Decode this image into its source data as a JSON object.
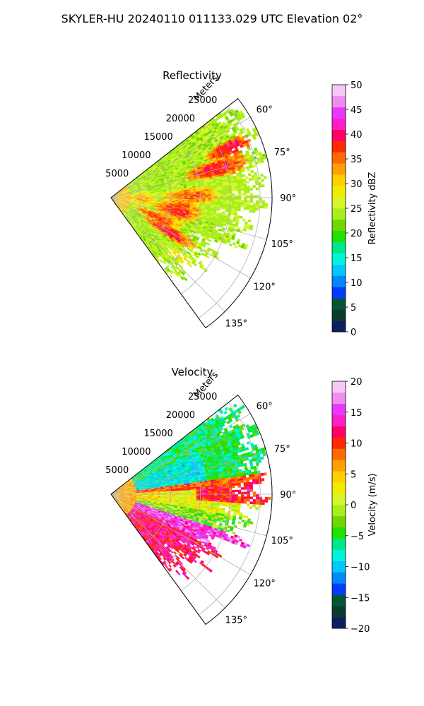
{
  "figure": {
    "suptitle": "SKYLER-HU  20240110  011133.029 UTC Elevation 02°"
  },
  "chart_data": [
    {
      "type": "heatmap",
      "projection": "polar-sector",
      "title": "Reflectivity",
      "radial_axis_label": "Meters",
      "radial_ticks": [
        5000,
        10000,
        15000,
        20000,
        25000
      ],
      "radial_tick_labels": [
        "5000",
        "10000",
        "15000",
        "20000",
        "25000"
      ],
      "rlim": [
        0,
        27000
      ],
      "azimuth_range_deg": [
        52,
        144
      ],
      "azimuth_ticks": [
        60,
        75,
        90,
        105,
        120,
        135
      ],
      "azimuth_tick_labels": [
        "60°",
        "75°",
        "90°",
        "105°",
        "120°",
        "135°"
      ],
      "grid": true,
      "colorbar": {
        "label": "Reflectivity dBZ",
        "range": [
          0,
          50
        ],
        "ticks": [
          0,
          5,
          10,
          15,
          20,
          25,
          30,
          35,
          40,
          45,
          50
        ],
        "tick_labels": [
          "0",
          "5",
          "10",
          "15",
          "20",
          "25",
          "30",
          "35",
          "40",
          "45",
          "50"
        ],
        "colors": [
          "#0b1f5e",
          "#0a3d2e",
          "#06553a",
          "#003dff",
          "#0088ff",
          "#00c8ff",
          "#00f5d8",
          "#00e88a",
          "#22e000",
          "#6ed800",
          "#a8ee1a",
          "#d6f52a",
          "#f0ec00",
          "#ffcf00",
          "#ffa200",
          "#ff6a00",
          "#ff2a00",
          "#ff0066",
          "#ff1fc8",
          "#e838ff",
          "#f08cf0",
          "#f7c8f5"
        ]
      },
      "field": "reflectivity",
      "blobs": [
        {
          "az": 100,
          "r": 11000,
          "raz": 9,
          "rr": 4000,
          "v": 38
        },
        {
          "az": 88,
          "r": 13000,
          "raz": 6,
          "rr": 5000,
          "v": 36
        },
        {
          "az": 74,
          "r": 18000,
          "raz": 5,
          "rr": 5500,
          "v": 39
        },
        {
          "az": 67,
          "r": 21000,
          "raz": 4,
          "rr": 4000,
          "v": 40
        },
        {
          "az": 112,
          "r": 8000,
          "raz": 6,
          "rr": 4500,
          "v": 37
        },
        {
          "az": 120,
          "r": 11000,
          "raz": 5,
          "rr": 5000,
          "v": 39
        },
        {
          "az": 92,
          "r": 5000,
          "raz": 14,
          "rr": 2500,
          "v": 33
        },
        {
          "az": 130,
          "r": 15000,
          "raz": 5,
          "rr": 4000,
          "v": 28
        }
      ]
    },
    {
      "type": "heatmap",
      "projection": "polar-sector",
      "title": "Velocity",
      "radial_axis_label": "Meters",
      "radial_ticks": [
        5000,
        10000,
        15000,
        20000,
        25000
      ],
      "radial_tick_labels": [
        "5000",
        "10000",
        "15000",
        "20000",
        "25000"
      ],
      "rlim": [
        0,
        27000
      ],
      "azimuth_range_deg": [
        52,
        144
      ],
      "azimuth_ticks": [
        60,
        75,
        90,
        105,
        120,
        135
      ],
      "azimuth_tick_labels": [
        "60°",
        "75°",
        "90°",
        "105°",
        "120°",
        "135°"
      ],
      "grid": true,
      "colorbar": {
        "label": "Velocity (m/s)",
        "range": [
          -20,
          20
        ],
        "ticks": [
          -20,
          -15,
          -10,
          -5,
          0,
          5,
          10,
          15,
          20
        ],
        "tick_labels": [
          "−20",
          "−15",
          "−10",
          "−5",
          "0",
          "5",
          "10",
          "15",
          "20"
        ],
        "colors": [
          "#0b1f5e",
          "#0a3d2e",
          "#06553a",
          "#003dff",
          "#0088ff",
          "#00c8ff",
          "#00f5d8",
          "#00e88a",
          "#22e000",
          "#6ed800",
          "#a8ee1a",
          "#d6f52a",
          "#f0ec00",
          "#ffcf00",
          "#ffa200",
          "#ff6a00",
          "#ff2a00",
          "#ff0066",
          "#ff1fc8",
          "#e838ff",
          "#f08cf0",
          "#f7c8f5"
        ]
      },
      "field": "velocity",
      "pattern": "inbound north of 88°, outbound south of 88°, near-zero band near 90–100°"
    }
  ]
}
